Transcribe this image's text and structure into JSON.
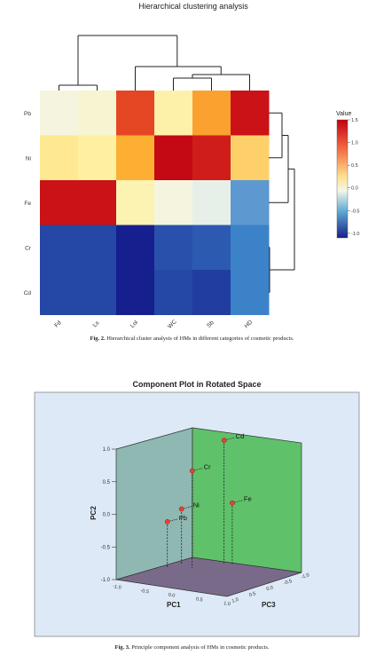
{
  "figure2": {
    "caption_label": "Fig. 2.",
    "caption_text": "Hierarchical cluster analysis of HMs in different categories of cosmetic products.",
    "chart_data": {
      "type": "heatmap",
      "title": "Hierarchical clustering analysis",
      "rows": [
        "Pb",
        "Ni",
        "Fe",
        "Cr",
        "Cd"
      ],
      "columns": [
        "Fd",
        "Ls",
        "Lol",
        "WC",
        "Sb",
        "HD"
      ],
      "values": [
        [
          0.05,
          0.12,
          1.2,
          0.35,
          0.85,
          1.45
        ],
        [
          0.45,
          0.4,
          0.8,
          1.5,
          1.4,
          0.6
        ],
        [
          1.45,
          1.45,
          0.3,
          0.05,
          -0.05,
          -0.5
        ],
        [
          -0.9,
          -0.9,
          -1.1,
          -0.85,
          -0.8,
          -0.6
        ],
        [
          -0.9,
          -0.9,
          -1.1,
          -0.9,
          -0.95,
          -0.6
        ]
      ],
      "legend_title": "Value",
      "legend_ticks": [
        "1.5",
        "1.0",
        "0.5",
        "0.0",
        "-0.5",
        "-1.0"
      ],
      "colors": {
        "high": "#d7191c",
        "mid": "#fbfbe4",
        "low": "#16238e"
      }
    }
  },
  "figure3": {
    "caption_label": "Fig. 3.",
    "caption_text": "Principle component analysis of HMs in cosmetic products.",
    "chart_data": {
      "type": "scatter",
      "title": "Component Plot in Rotated Space",
      "axis_labels": {
        "pc1": "PC1",
        "pc2": "PC2",
        "pc3": "PC3"
      },
      "pc2_ticks": [
        "1.0",
        "0.5",
        "0.0",
        "-0.5",
        "-1.0"
      ],
      "pc1_ticks": [
        "-1.0",
        "-0.5",
        "0.0",
        "0.5",
        "1.0"
      ],
      "pc3_ticks": [
        "1.0",
        "0.5",
        "0.0",
        "-0.5",
        "-1.0"
      ],
      "points": [
        {
          "label": "Cd",
          "pc1": 0.35,
          "pc2": 0.9,
          "pc3": 0.9
        },
        {
          "label": "Cr",
          "pc1": 0.55,
          "pc2": 0.5,
          "pc3": 0.35
        },
        {
          "label": "Fe",
          "pc1": 0.2,
          "pc2": -0.05,
          "pc3": 0.9
        },
        {
          "label": "Ni",
          "pc1": 0.85,
          "pc2": -0.15,
          "pc3": 0.5
        },
        {
          "label": "Pb",
          "pc1": 0.9,
          "pc2": -0.3,
          "pc3": 0.2
        }
      ],
      "colors": {
        "left_wall": "#8fb8b2",
        "right_wall": "#5fc16a",
        "floor": "#7a6a8a",
        "background": "#dde9f7",
        "point": "#e8413a"
      }
    }
  }
}
